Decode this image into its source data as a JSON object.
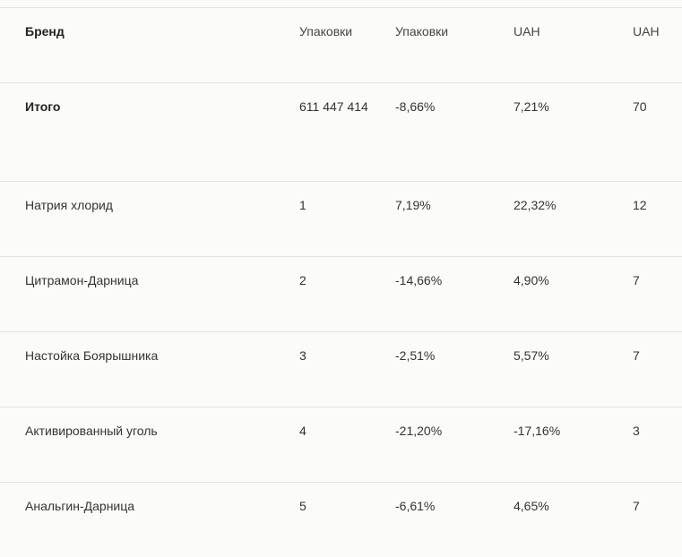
{
  "table": {
    "columns": [
      "Бренд",
      "Упаковки",
      "Упаковки",
      "UAH",
      "UAH"
    ],
    "total": {
      "label": "Итого",
      "packs": "611 447 414",
      "packs_change": "-8,66%",
      "uah_change": "7,21%",
      "uah_value": "70"
    },
    "rows": [
      {
        "brand": "Натрия хлорид",
        "rank": "1",
        "packs_change": "7,19%",
        "uah_change": "22,32%",
        "uah_value": "12"
      },
      {
        "brand": "Цитрамон-Дарница",
        "rank": "2",
        "packs_change": "-14,66%",
        "uah_change": "4,90%",
        "uah_value": "7"
      },
      {
        "brand": "Настойка Боярышника",
        "rank": "3",
        "packs_change": "-2,51%",
        "uah_change": "5,57%",
        "uah_value": "7"
      },
      {
        "brand": "Активированный уголь",
        "rank": "4",
        "packs_change": "-21,20%",
        "uah_change": "-17,16%",
        "uah_value": "3"
      },
      {
        "brand": "Анальгин-Дарница",
        "rank": "5",
        "packs_change": "-6,61%",
        "uah_change": "4,65%",
        "uah_value": "7"
      }
    ]
  }
}
